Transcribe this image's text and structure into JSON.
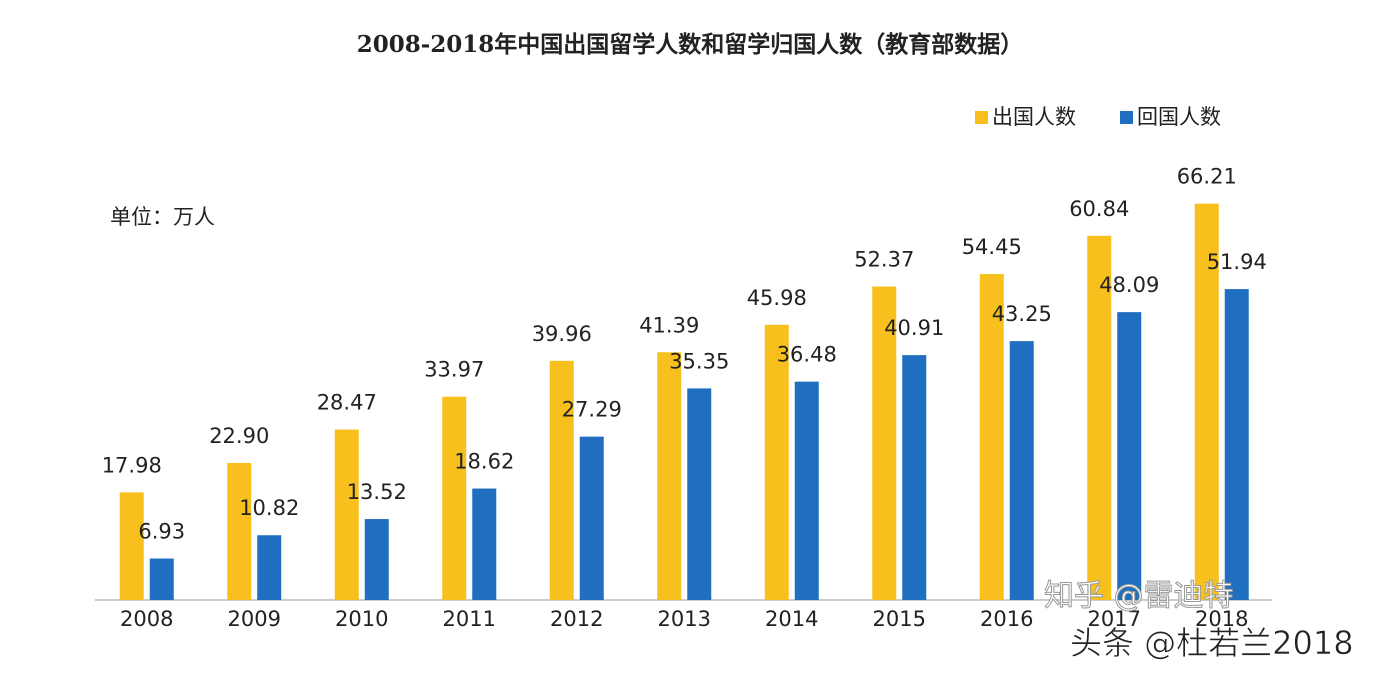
{
  "chart_data": {
    "type": "bar",
    "title": "2008-2018年中国出国留学人数和留学归国人数（教育部数据）",
    "unit_label": "单位：万人",
    "categories": [
      "2008",
      "2009",
      "2010",
      "2011",
      "2012",
      "2013",
      "2014",
      "2015",
      "2016",
      "2017",
      "2018"
    ],
    "series": [
      {
        "name": "出国人数",
        "color": "#f7c01c",
        "values": [
          17.98,
          22.9,
          28.47,
          33.97,
          39.96,
          41.39,
          45.98,
          52.37,
          54.45,
          60.84,
          66.21
        ],
        "value_labels": [
          "17.98",
          "22.90",
          "28.47",
          "33.97",
          "39.96",
          "41.39",
          "45.98",
          "52.37",
          "54.45",
          "60.84",
          "66.21"
        ]
      },
      {
        "name": "回国人数",
        "color": "#1f6ebf",
        "values": [
          6.93,
          10.82,
          13.52,
          18.62,
          27.29,
          35.35,
          36.48,
          40.91,
          43.25,
          48.09,
          51.94
        ],
        "value_labels": [
          "6.93",
          "10.82",
          "13.52",
          "18.62",
          "27.29",
          "35.35",
          "36.48",
          "40.91",
          "43.25",
          "48.09",
          "51.94"
        ]
      }
    ],
    "ylim": [
      0,
      70
    ],
    "legend": "top-right",
    "annotations": [
      "知乎 @雷迪特",
      "头条 @杜若兰2018"
    ]
  }
}
